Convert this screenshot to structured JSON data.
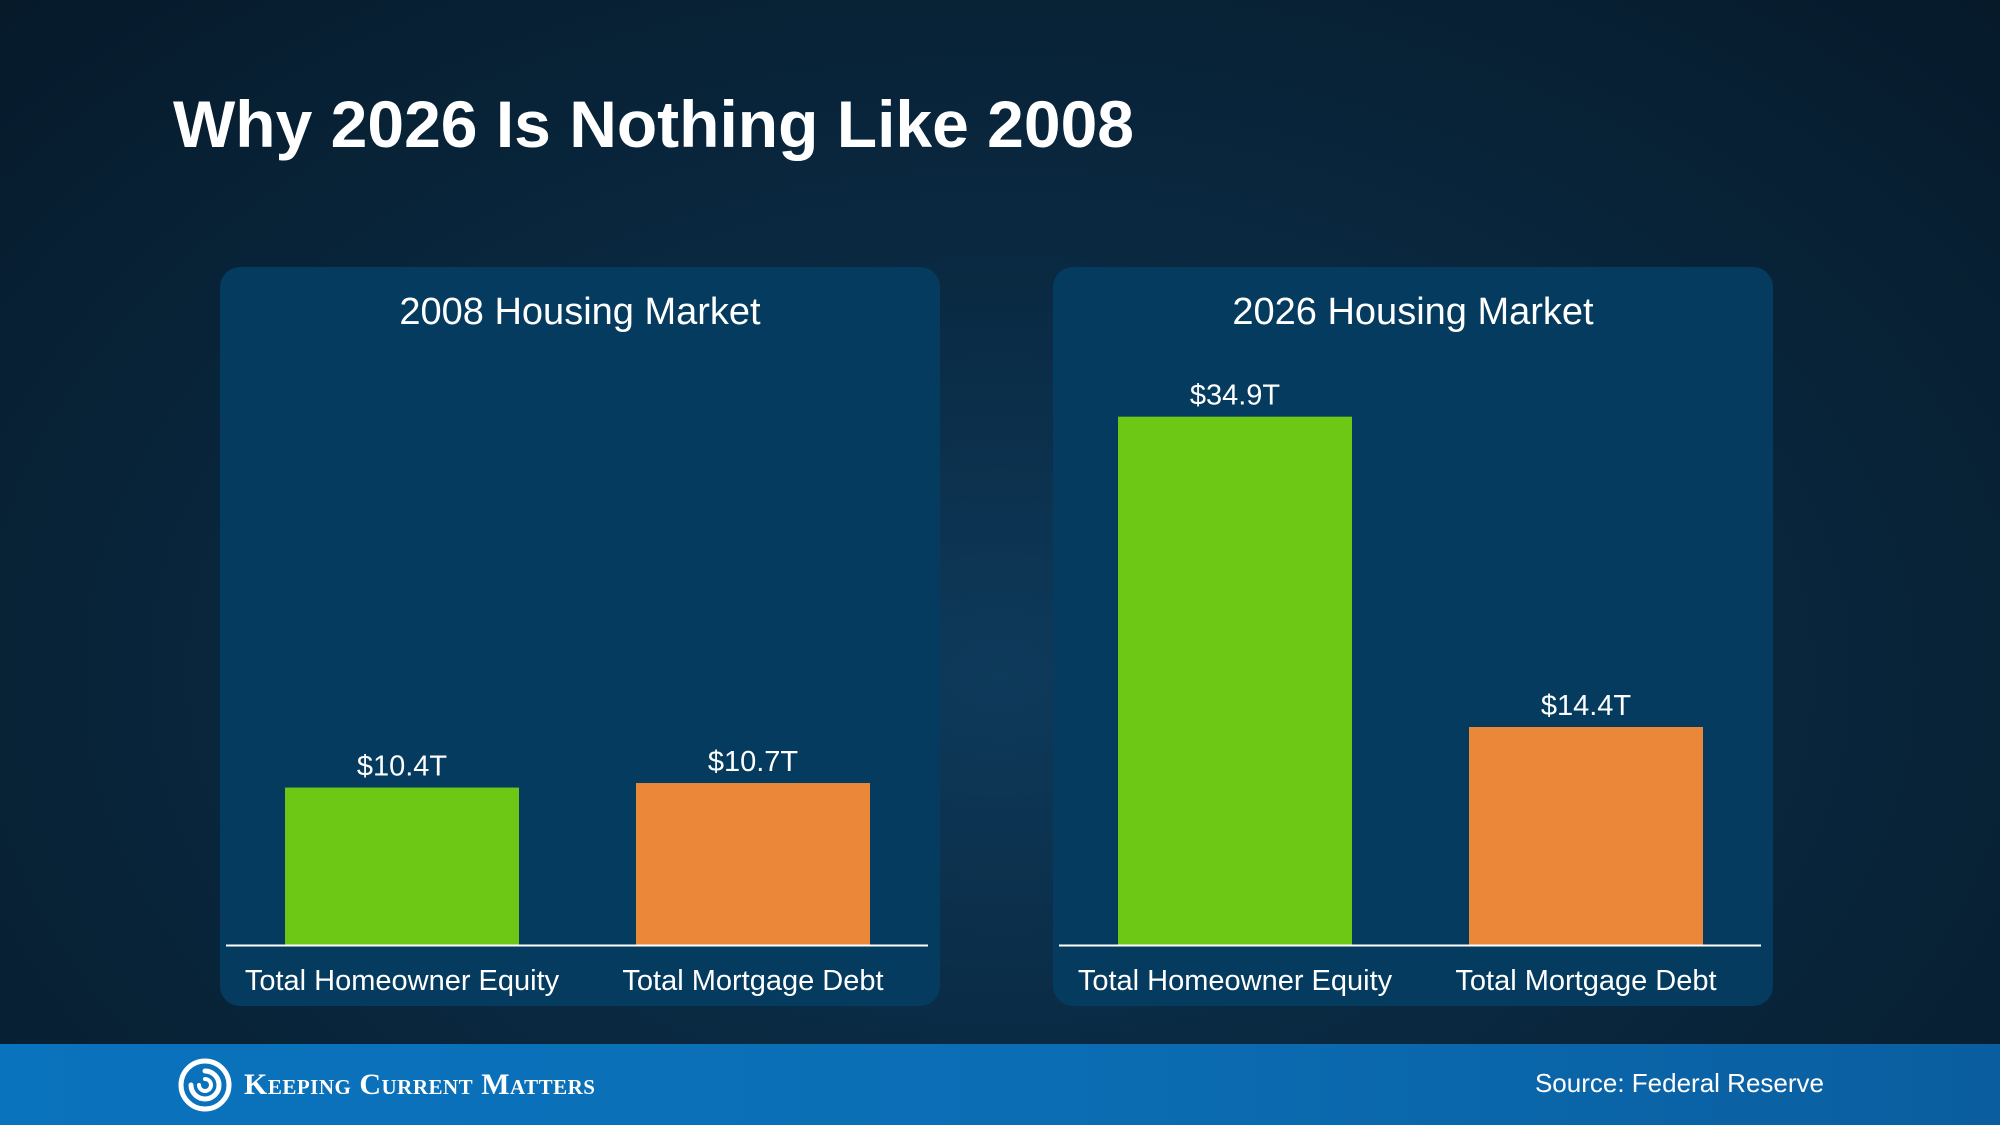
{
  "title": "Why 2026 Is Nothing Like 2008",
  "colors": {
    "equity": "#6cc814",
    "debt": "#ea8738",
    "panel": "#043b5e",
    "footer": "#0a73bd"
  },
  "footer": {
    "brand": "Keeping Current Matters",
    "source": "Source: Federal Reserve"
  },
  "chart_data": [
    {
      "type": "bar",
      "title": "2008 Housing Market",
      "categories": [
        "Total Homeowner Equity",
        "Total Mortgage Debt"
      ],
      "values": [
        10.4,
        10.7
      ],
      "value_labels": [
        "$10.4T",
        "$10.7T"
      ],
      "colors": [
        "#6cc814",
        "#ea8738"
      ],
      "ylim": [
        0,
        36
      ],
      "grid": false
    },
    {
      "type": "bar",
      "title": "2026 Housing Market",
      "categories": [
        "Total Homeowner Equity",
        "Total Mortgage Debt"
      ],
      "values": [
        34.9,
        14.4
      ],
      "value_labels": [
        "$34.9T",
        "$14.4T"
      ],
      "colors": [
        "#6cc814",
        "#ea8738"
      ],
      "ylim": [
        0,
        36
      ],
      "grid": false
    }
  ]
}
